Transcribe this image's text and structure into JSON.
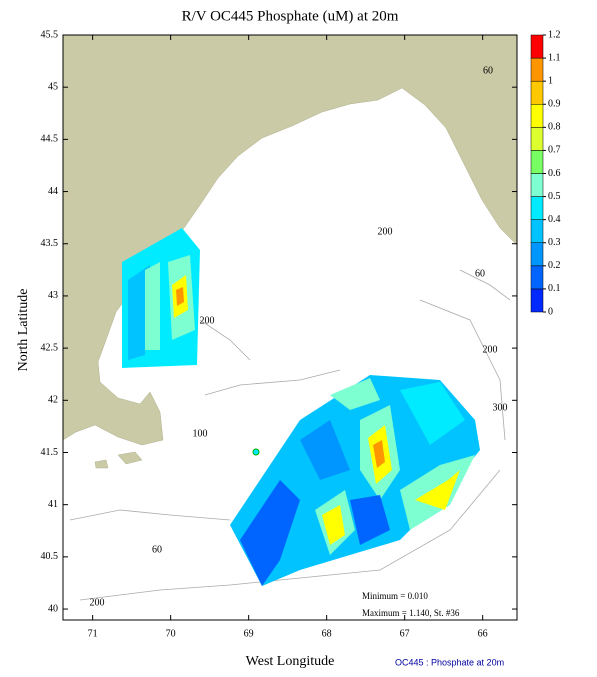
{
  "map": {
    "title": "R/V OC445 Phosphate (uM) at 20m",
    "xlabel": "West Longitude",
    "ylabel": "North Latitude",
    "xlim": [
      71.38,
      65.56
    ],
    "ylim": [
      39.895,
      45.5
    ],
    "xticks": [
      71,
      70,
      69,
      68,
      67,
      66
    ],
    "yticks": [
      40,
      40.5,
      41,
      41.5,
      42,
      42.5,
      43,
      43.5,
      44,
      44.5,
      45,
      45.5
    ],
    "land_color": "#cbcaa6",
    "colorbar": {
      "ticks": [
        0,
        0.1,
        0.2,
        0.3,
        0.4,
        0.5,
        0.6,
        0.7,
        0.8,
        0.9,
        1,
        1.1,
        1.2
      ],
      "colors": [
        "#0028ff",
        "#0064ff",
        "#0096ff",
        "#00c3ff",
        "#00ebff",
        "#7dffd2",
        "#78ff64",
        "#dcff2d",
        "#ffff00",
        "#ffc800",
        "#ff9600",
        "#ff0000"
      ]
    },
    "contour_labels": [
      "60",
      "200",
      "100",
      "200",
      "300",
      "60",
      "60",
      "200",
      "200"
    ],
    "annotations": [
      "Minimum = 0.010",
      "Maximum = 1.140, St. #36"
    ],
    "footer": "OC445 : Phosphate at 20m"
  }
}
